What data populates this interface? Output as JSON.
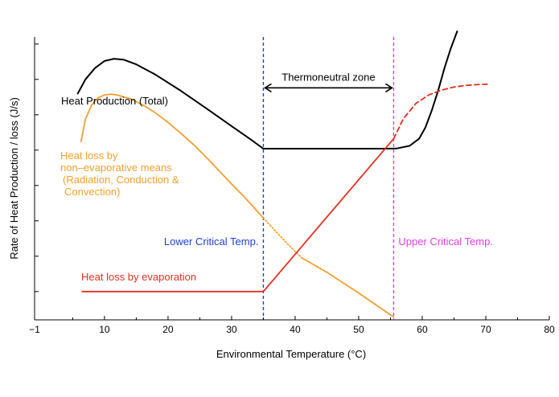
{
  "chart_data": {
    "type": "line",
    "title": "",
    "xlabel": "Environmental Temperature (°C)",
    "ylabel": "Rate of Heat Production / loss (J/s)",
    "xlim": [
      -1,
      80
    ],
    "ylim": [
      0,
      100
    ],
    "x_ticks": [
      -1,
      10,
      20,
      30,
      40,
      50,
      60,
      70,
      80
    ],
    "y_ticks_labeled": false,
    "grid": false,
    "legend": "none",
    "critical_temps": [
      {
        "label": "Lower Critical Temp.",
        "x": 35,
        "color": "#1f3fcf"
      },
      {
        "label": "Upper Critical Temp.",
        "x": 55.5,
        "color": "#e040e0"
      }
    ],
    "zone": {
      "label": "Thermoneutral zone",
      "x_start": 35,
      "x_end": 55.5,
      "y": 82
    },
    "series": [
      {
        "name": "Heat Production (Total)",
        "color": "#000000",
        "style": "solid",
        "x": [
          5.8,
          7,
          8.5,
          10,
          11.5,
          13,
          15,
          18,
          22,
          26,
          30,
          33,
          35,
          40,
          45,
          50,
          54,
          56,
          58,
          59.5,
          60.5,
          61.5,
          62.5,
          63.5,
          64.5,
          65.5
        ],
        "y": [
          80,
          85,
          89,
          91.5,
          92.3,
          92,
          90.3,
          86.7,
          81,
          74.8,
          68.5,
          63.8,
          60.5,
          60.5,
          60.5,
          60.5,
          60.5,
          60.6,
          61.5,
          64,
          68,
          74,
          81,
          89,
          96,
          102
        ]
      },
      {
        "name": "Heat loss by non-evaporative means (Radiation, Conduction & Convection)",
        "color": "#f0a030",
        "style": "solid",
        "x": [
          6.3,
          7,
          8,
          9,
          10,
          11,
          12,
          14,
          16,
          18,
          20,
          22,
          24,
          26,
          28,
          30,
          32,
          34,
          35
        ],
        "y": [
          63,
          71,
          76,
          78.5,
          79.5,
          79.8,
          79.5,
          78.2,
          76,
          73.2,
          69.8,
          66,
          62,
          57.5,
          52.8,
          48,
          43.5,
          38.5,
          36
        ]
      },
      {
        "name": "non-evaporative (dotted segment)",
        "color": "#f0a030",
        "style": "dotted",
        "x": [
          35,
          37,
          39,
          41
        ],
        "y": [
          36,
          31.2,
          26.4,
          22
        ]
      },
      {
        "name": "non-evaporative (lower segment)",
        "color": "#f0a030",
        "style": "solid",
        "x": [
          41,
          45,
          50,
          55.5
        ],
        "y": [
          22,
          16.8,
          9.5,
          1
        ]
      },
      {
        "name": "Heat loss by evaporation",
        "color": "#e03020",
        "style": "solid",
        "x": [
          6.5,
          35,
          55.5
        ],
        "y": [
          10,
          10,
          64
        ]
      },
      {
        "name": "evaporation (dashed segment)",
        "color": "#e03020",
        "style": "dashed",
        "x": [
          55.5,
          57,
          59,
          61,
          63,
          65,
          67,
          69,
          70.5
        ],
        "y": [
          64,
          71,
          76.5,
          79.5,
          81.2,
          82.3,
          82.9,
          83.2,
          83.3
        ]
      }
    ],
    "annotations": [
      {
        "text": "Heat Production (Total)",
        "color": "#000000"
      },
      {
        "text": "Heat loss by",
        "color": "#f0a030"
      },
      {
        "text": "non–evaporative means",
        "color": "#f0a030"
      },
      {
        "text": "(Radiation, Conduction &",
        "color": "#f0a030"
      },
      {
        "text": "Convection)",
        "color": "#f0a030"
      },
      {
        "text": "Heat loss by evaporation",
        "color": "#e03020"
      }
    ]
  }
}
